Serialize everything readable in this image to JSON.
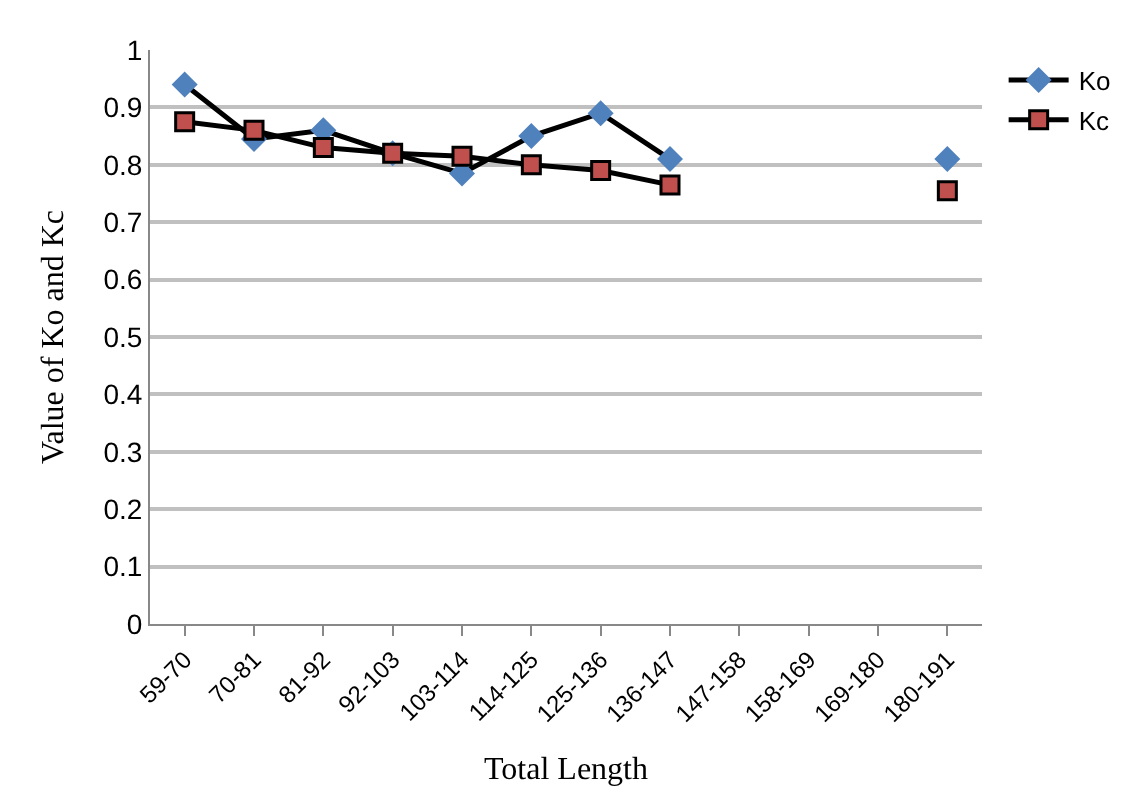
{
  "chart_data": {
    "type": "line",
    "xlabel": "Total Length",
    "ylabel": "Value of Ko and Kc",
    "categories": [
      "59-70",
      "70-81",
      "81-92",
      "92-103",
      "103-114",
      "114-125",
      "125-136",
      "136-147",
      "147-158",
      "158-169",
      "169-180",
      "180-191"
    ],
    "series": [
      {
        "name": "Ko",
        "color": "#4f81bd",
        "marker": "diamond",
        "values": [
          0.94,
          0.845,
          0.86,
          0.82,
          0.785,
          0.85,
          0.89,
          0.81,
          null,
          null,
          null,
          0.81
        ]
      },
      {
        "name": "Kc",
        "color": "#c0504d",
        "marker": "square",
        "values": [
          0.875,
          0.86,
          0.83,
          0.82,
          0.815,
          0.8,
          0.79,
          0.765,
          null,
          null,
          null,
          0.755
        ]
      }
    ],
    "ylim": [
      0,
      1
    ],
    "yticks": [
      0,
      0.1,
      0.2,
      0.3,
      0.4,
      0.5,
      0.6,
      0.7,
      0.8,
      0.9,
      1
    ],
    "grid": "y",
    "legend": "top right",
    "line_style": "solid"
  }
}
